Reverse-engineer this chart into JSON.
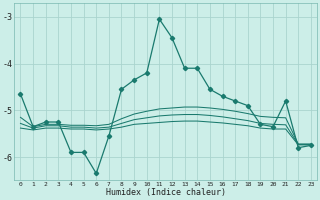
{
  "xlabel": "Humidex (Indice chaleur)",
  "bg_color": "#cceee8",
  "grid_color": "#aad4ce",
  "line_color": "#1a7a6e",
  "xlim": [
    -0.5,
    23.5
  ],
  "ylim": [
    -6.5,
    -2.7
  ],
  "yticks": [
    -6,
    -5,
    -4,
    -3
  ],
  "xticks": [
    0,
    1,
    2,
    3,
    4,
    5,
    6,
    7,
    8,
    9,
    10,
    11,
    12,
    13,
    14,
    15,
    16,
    17,
    18,
    19,
    20,
    21,
    22,
    23
  ],
  "series1_x": [
    0,
    1,
    2,
    3,
    4,
    5,
    6,
    7,
    8,
    9,
    10,
    11,
    12,
    13,
    14,
    15,
    16,
    17,
    18,
    19,
    20,
    21,
    22,
    23
  ],
  "series1_y": [
    -4.65,
    -5.35,
    -5.25,
    -5.25,
    -5.9,
    -5.9,
    -6.35,
    -5.55,
    -4.55,
    -4.35,
    -4.2,
    -3.05,
    -3.45,
    -4.1,
    -4.1,
    -4.55,
    -4.7,
    -4.8,
    -4.9,
    -5.3,
    -5.35,
    -4.8,
    -5.8,
    -5.75
  ],
  "series2_x": [
    0,
    1,
    2,
    3,
    4,
    5,
    6,
    7,
    8,
    9,
    10,
    11,
    12,
    13,
    14,
    15,
    16,
    17,
    18,
    19,
    20,
    21,
    22,
    23
  ],
  "series2_y": [
    -5.15,
    -5.35,
    -5.3,
    -5.3,
    -5.32,
    -5.32,
    -5.33,
    -5.3,
    -5.18,
    -5.08,
    -5.02,
    -4.97,
    -4.95,
    -4.93,
    -4.93,
    -4.95,
    -4.98,
    -5.02,
    -5.07,
    -5.13,
    -5.15,
    -5.16,
    -5.72,
    -5.72
  ],
  "series3_x": [
    0,
    1,
    2,
    3,
    4,
    5,
    6,
    7,
    8,
    9,
    10,
    11,
    12,
    13,
    14,
    15,
    16,
    17,
    18,
    19,
    20,
    21,
    22,
    23
  ],
  "series3_y": [
    -5.28,
    -5.38,
    -5.33,
    -5.33,
    -5.36,
    -5.36,
    -5.38,
    -5.36,
    -5.28,
    -5.2,
    -5.16,
    -5.12,
    -5.1,
    -5.09,
    -5.09,
    -5.11,
    -5.14,
    -5.18,
    -5.22,
    -5.28,
    -5.3,
    -5.31,
    -5.73,
    -5.73
  ],
  "series4_x": [
    0,
    1,
    2,
    3,
    4,
    5,
    6,
    7,
    8,
    9,
    10,
    11,
    12,
    13,
    14,
    15,
    16,
    17,
    18,
    19,
    20,
    21,
    22,
    23
  ],
  "series4_y": [
    -5.38,
    -5.42,
    -5.38,
    -5.38,
    -5.4,
    -5.4,
    -5.42,
    -5.4,
    -5.36,
    -5.3,
    -5.28,
    -5.26,
    -5.24,
    -5.23,
    -5.23,
    -5.25,
    -5.27,
    -5.3,
    -5.33,
    -5.38,
    -5.4,
    -5.4,
    -5.74,
    -5.74
  ]
}
